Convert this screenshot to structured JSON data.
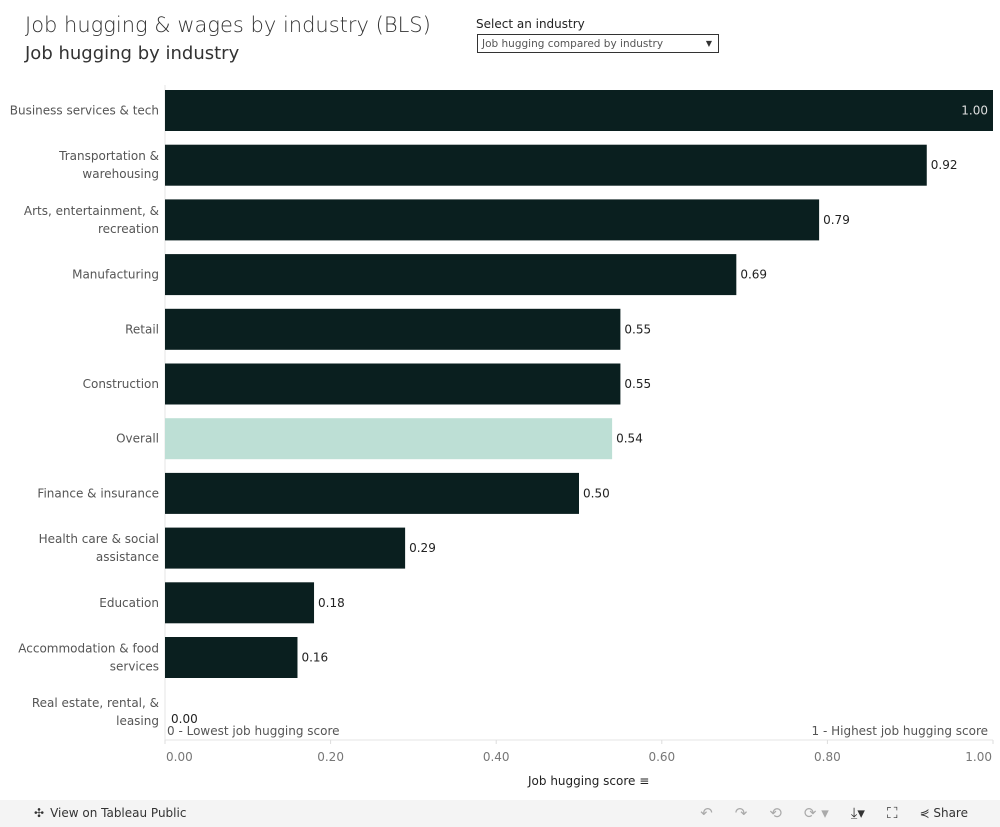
{
  "header": {
    "title": "Job hugging & wages by industry (BLS)",
    "subtitle": "Job hugging by industry"
  },
  "filter": {
    "label": "Select an industry",
    "value": "Job hugging compared by industry"
  },
  "chart_data": {
    "type": "bar",
    "orientation": "horizontal",
    "categories": [
      [
        "Business services & tech"
      ],
      [
        "Transportation &",
        "warehousing"
      ],
      [
        "Arts, entertainment, &",
        "recreation"
      ],
      [
        "Manufacturing"
      ],
      [
        "Retail"
      ],
      [
        "Construction"
      ],
      [
        "Overall"
      ],
      [
        "Finance & insurance"
      ],
      [
        "Health care & social",
        "assistance"
      ],
      [
        "Education"
      ],
      [
        "Accommodation & food",
        "services"
      ],
      [
        "Real estate, rental, &",
        "leasing"
      ]
    ],
    "values": [
      1.0,
      0.92,
      0.79,
      0.69,
      0.55,
      0.55,
      0.54,
      0.5,
      0.29,
      0.18,
      0.16,
      0.0
    ],
    "data_labels": [
      "1.00",
      "0.92",
      "0.79",
      "0.69",
      "0.55",
      "0.55",
      "0.54",
      "0.50",
      "0.29",
      "0.18",
      "0.16",
      "0.00"
    ],
    "highlight": "Overall",
    "xlabel": "Job hugging score",
    "xlim": [
      0,
      1
    ],
    "xticks": [
      "0.00",
      "0.20",
      "0.40",
      "0.60",
      "0.80",
      "1.00"
    ],
    "annotations": {
      "low": "0 - Lowest job hugging score",
      "high": "1 - Highest job hugging score"
    },
    "colors": {
      "bar": "#0a1f1f",
      "highlight": "#bddfd5"
    }
  },
  "footer": {
    "view_label": "View on Tableau Public",
    "share_label": "Share"
  }
}
